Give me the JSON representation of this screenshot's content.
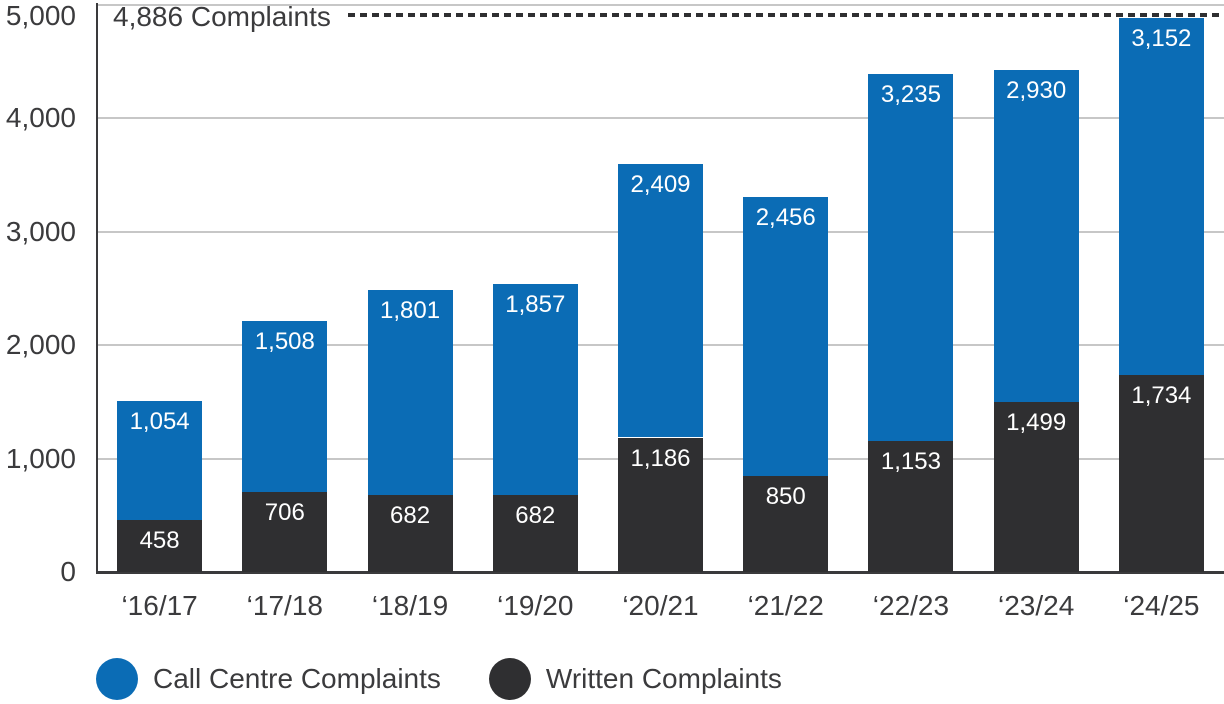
{
  "chart_data": {
    "type": "bar",
    "stacked": true,
    "categories": [
      "‘16/17",
      "‘17/18",
      "‘18/19",
      "‘19/20",
      "‘20/21",
      "‘21/22",
      "‘22/23",
      "‘23/24",
      "‘24/25"
    ],
    "series": [
      {
        "name": "Call Centre Complaints",
        "color": "#0b6cb5",
        "values": [
          1054,
          1508,
          1801,
          1857,
          2409,
          2456,
          3235,
          2930,
          3152
        ]
      },
      {
        "name": "Written Complaints",
        "color": "#2f2f31",
        "values": [
          458,
          706,
          682,
          682,
          1186,
          850,
          1153,
          1499,
          1734
        ]
      }
    ],
    "stack_order_bottom_to_top": [
      "Written Complaints",
      "Call Centre Complaints"
    ],
    "title": "",
    "xlabel": "",
    "ylabel": "",
    "ylim": [
      0,
      5000
    ],
    "y_axis": {
      "ticks": [
        {
          "label": "5,000",
          "value": 5000
        },
        {
          "label": "4,000",
          "value": 4000
        },
        {
          "label": "3,000",
          "value": 3000
        },
        {
          "label": "2,000",
          "value": 2000
        },
        {
          "label": "1,000",
          "value": 1000
        },
        {
          "label": "0",
          "value": 0
        }
      ]
    },
    "grid": true,
    "legend_position": "bottom",
    "annotation": {
      "text": "4,886 Complaints",
      "value": 4886,
      "line_style": "dotted"
    },
    "colors": {
      "call_centre": "#0b6cb5",
      "written": "#2f2f31",
      "gridline": "#c7c7c7",
      "axis": "#3a3a3c",
      "text": "#3b3b3d",
      "bar_label_text": "#ffffff"
    }
  }
}
